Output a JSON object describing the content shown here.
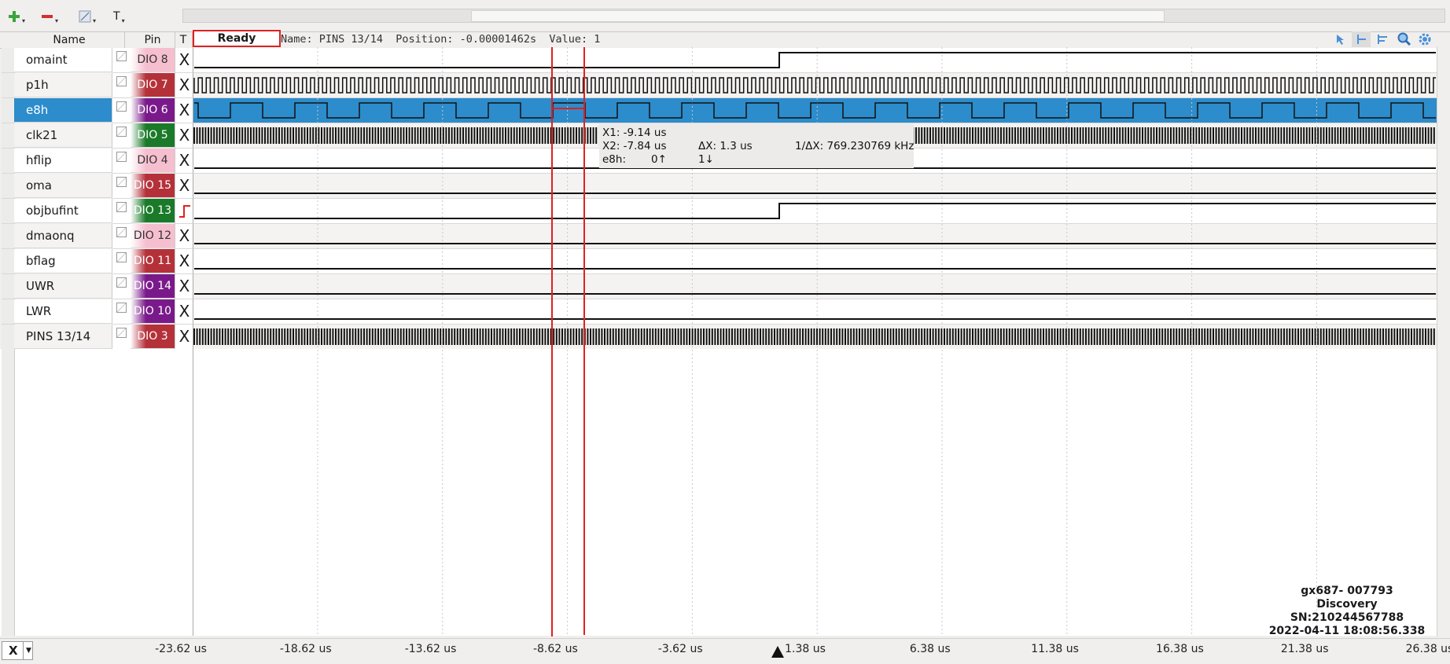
{
  "toolbar": {
    "add_icon": "plus-icon",
    "remove_icon": "minus-icon",
    "config_icon": "edit-icon",
    "text_label": "T"
  },
  "header": {
    "name_col": "Name",
    "pin_col": "Pin",
    "trigger_col": "T",
    "status": "Ready",
    "info": "Name: PINS 13/14  Position: -0.00001462s  Value: 1"
  },
  "signals": [
    {
      "name": "omaint",
      "pin": "DIO  8",
      "pin_color": "#f6bfd0",
      "pin_text": "#333",
      "trigger": "X"
    },
    {
      "name": "p1h",
      "pin": "DIO  7",
      "pin_color": "#b5313a",
      "pin_text": "#fff",
      "trigger": "X"
    },
    {
      "name": "e8h",
      "pin": "DIO  6",
      "pin_color": "#7a1a8a",
      "pin_text": "#fff",
      "trigger": "X"
    },
    {
      "name": "clk21",
      "pin": "DIO  5",
      "pin_color": "#1a7a2a",
      "pin_text": "#fff",
      "trigger": "X"
    },
    {
      "name": "hflip",
      "pin": "DIO  4",
      "pin_color": "#f6bfd0",
      "pin_text": "#333",
      "trigger": "X"
    },
    {
      "name": "oma",
      "pin": "DIO 15",
      "pin_color": "#b5313a",
      "pin_text": "#fff",
      "trigger": "X"
    },
    {
      "name": "objbufint",
      "pin": "DIO 13",
      "pin_color": "#1a7a2a",
      "pin_text": "#fff",
      "trigger": "rising-edge"
    },
    {
      "name": "dmaonq",
      "pin": "DIO 12",
      "pin_color": "#f6bfd0",
      "pin_text": "#333",
      "trigger": "X"
    },
    {
      "name": "bflag",
      "pin": "DIO 11",
      "pin_color": "#b5313a",
      "pin_text": "#fff",
      "trigger": "X"
    },
    {
      "name": "UWR",
      "pin": "DIO 14",
      "pin_color": "#7a1a8a",
      "pin_text": "#fff",
      "trigger": "X"
    },
    {
      "name": "LWR",
      "pin": "DIO 10",
      "pin_color": "#7a1a8a",
      "pin_text": "#fff",
      "trigger": "X"
    },
    {
      "name": "PINS 13/14",
      "pin": "DIO  3",
      "pin_color": "#b5313a",
      "pin_text": "#fff",
      "trigger": "X"
    }
  ],
  "tooltip": {
    "x1": "X1: -9.14 us",
    "x2": "X2: -7.84 us",
    "dx": "ΔX: 1.3 us",
    "inv_dx": "1/ΔX: 769.230769 kHz",
    "sig_name": "e8h:",
    "v1": "0↑",
    "v2": "1↓"
  },
  "device": {
    "model": "gx687- 007793",
    "name": "Discovery",
    "serial": "SN:210244567788",
    "timestamp": "2022-04-11 18:08:56.338"
  },
  "axis": {
    "ticks": [
      "-23.62 us",
      "-18.62 us",
      "-13.62 us",
      "-8.62 us",
      "-3.62 us",
      "1.38 us",
      "6.38 us",
      "11.38 us",
      "16.38 us",
      "21.38 us",
      "26.38 us"
    ],
    "mode_button": "X"
  },
  "colors": {
    "selection": "#2d8ccb",
    "cursor": "#e02020"
  }
}
